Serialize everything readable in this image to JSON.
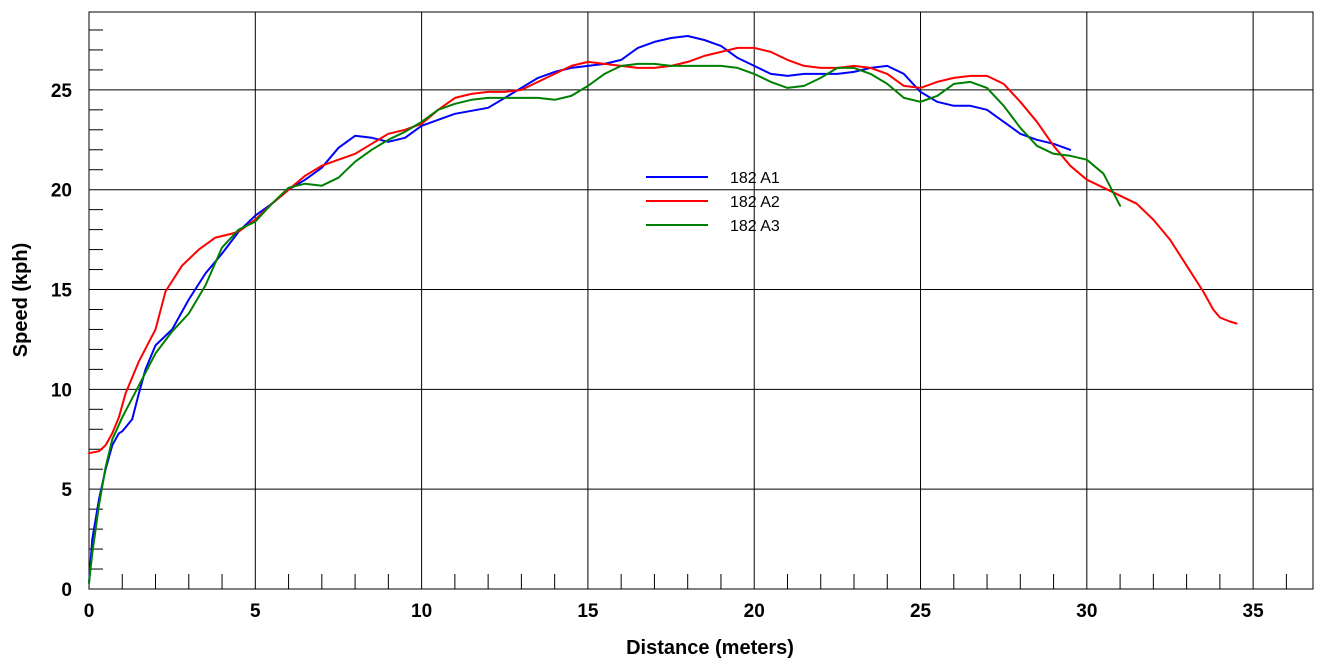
{
  "chart_data": {
    "type": "line",
    "title": "",
    "xlabel": "Distance (meters)",
    "ylabel": "Speed (kph)",
    "xlim": [
      0,
      36.8
    ],
    "ylim": [
      0,
      28.9
    ],
    "x_ticks": [
      "0",
      "5",
      "10",
      "15",
      "20",
      "25",
      "30",
      "35"
    ],
    "y_ticks": [
      "0",
      "5",
      "10",
      "15",
      "20",
      "25"
    ],
    "grid": true,
    "legend_position": "center",
    "series": [
      {
        "name": "182 A1",
        "color": "#0000ff",
        "points": [
          [
            0,
            0.3
          ],
          [
            0.1,
            2.5
          ],
          [
            0.3,
            4.5
          ],
          [
            0.5,
            6.0
          ],
          [
            0.7,
            7.2
          ],
          [
            0.9,
            7.8
          ],
          [
            1.0,
            7.9
          ],
          [
            1.3,
            8.5
          ],
          [
            1.5,
            9.8
          ],
          [
            1.7,
            11.0
          ],
          [
            2.0,
            12.2
          ],
          [
            2.5,
            13.0
          ],
          [
            3.0,
            14.5
          ],
          [
            3.5,
            15.8
          ],
          [
            4.0,
            16.8
          ],
          [
            4.5,
            17.9
          ],
          [
            5.0,
            18.7
          ],
          [
            5.5,
            19.3
          ],
          [
            6.0,
            20.0
          ],
          [
            6.5,
            20.5
          ],
          [
            7.0,
            21.1
          ],
          [
            7.5,
            22.1
          ],
          [
            8.0,
            22.7
          ],
          [
            8.5,
            22.6
          ],
          [
            9.0,
            22.4
          ],
          [
            9.5,
            22.6
          ],
          [
            10.0,
            23.2
          ],
          [
            10.5,
            23.5
          ],
          [
            11.0,
            23.8
          ],
          [
            12.0,
            24.1
          ],
          [
            12.5,
            24.6
          ],
          [
            13.0,
            25.1
          ],
          [
            13.5,
            25.6
          ],
          [
            14.0,
            25.9
          ],
          [
            14.5,
            26.1
          ],
          [
            15.0,
            26.2
          ],
          [
            15.5,
            26.3
          ],
          [
            16.0,
            26.5
          ],
          [
            16.5,
            27.1
          ],
          [
            17.0,
            27.4
          ],
          [
            17.5,
            27.6
          ],
          [
            18.0,
            27.7
          ],
          [
            18.5,
            27.5
          ],
          [
            19.0,
            27.2
          ],
          [
            19.5,
            26.6
          ],
          [
            20.0,
            26.2
          ],
          [
            20.5,
            25.8
          ],
          [
            21.0,
            25.7
          ],
          [
            21.5,
            25.8
          ],
          [
            22.0,
            25.8
          ],
          [
            22.5,
            25.8
          ],
          [
            23.0,
            25.9
          ],
          [
            23.5,
            26.1
          ],
          [
            24.0,
            26.2
          ],
          [
            24.5,
            25.8
          ],
          [
            25.0,
            24.9
          ],
          [
            25.5,
            24.4
          ],
          [
            26.0,
            24.2
          ],
          [
            26.5,
            24.2
          ],
          [
            27.0,
            24.0
          ],
          [
            27.5,
            23.4
          ],
          [
            28.0,
            22.8
          ],
          [
            28.5,
            22.5
          ],
          [
            29.0,
            22.3
          ],
          [
            29.5,
            22.0
          ]
        ]
      },
      {
        "name": "182 A2",
        "color": "#ff0000",
        "points": [
          [
            0,
            6.8
          ],
          [
            0.3,
            6.9
          ],
          [
            0.5,
            7.2
          ],
          [
            0.7,
            7.8
          ],
          [
            0.9,
            8.6
          ],
          [
            1.1,
            9.8
          ],
          [
            1.5,
            11.4
          ],
          [
            2.0,
            13.0
          ],
          [
            2.3,
            14.9
          ],
          [
            2.8,
            16.2
          ],
          [
            3.3,
            17.0
          ],
          [
            3.8,
            17.6
          ],
          [
            4.3,
            17.8
          ],
          [
            4.5,
            17.9
          ],
          [
            5.0,
            18.5
          ],
          [
            5.5,
            19.3
          ],
          [
            6.0,
            20.0
          ],
          [
            6.5,
            20.7
          ],
          [
            7.0,
            21.2
          ],
          [
            7.5,
            21.5
          ],
          [
            8.0,
            21.8
          ],
          [
            8.5,
            22.3
          ],
          [
            9.0,
            22.8
          ],
          [
            9.5,
            23.0
          ],
          [
            10.0,
            23.3
          ],
          [
            10.5,
            24.0
          ],
          [
            11.0,
            24.6
          ],
          [
            11.5,
            24.8
          ],
          [
            12.0,
            24.9
          ],
          [
            12.5,
            24.9
          ],
          [
            13.0,
            25.0
          ],
          [
            13.5,
            25.4
          ],
          [
            14.0,
            25.8
          ],
          [
            14.5,
            26.2
          ],
          [
            15.0,
            26.4
          ],
          [
            15.5,
            26.3
          ],
          [
            16.0,
            26.2
          ],
          [
            16.5,
            26.1
          ],
          [
            17.0,
            26.1
          ],
          [
            17.5,
            26.2
          ],
          [
            18.0,
            26.4
          ],
          [
            18.5,
            26.7
          ],
          [
            19.0,
            26.9
          ],
          [
            19.5,
            27.1
          ],
          [
            20.0,
            27.1
          ],
          [
            20.5,
            26.9
          ],
          [
            21.0,
            26.5
          ],
          [
            21.5,
            26.2
          ],
          [
            22.0,
            26.1
          ],
          [
            22.5,
            26.1
          ],
          [
            23.0,
            26.2
          ],
          [
            23.5,
            26.1
          ],
          [
            24.0,
            25.8
          ],
          [
            24.5,
            25.2
          ],
          [
            25.0,
            25.1
          ],
          [
            25.5,
            25.4
          ],
          [
            26.0,
            25.6
          ],
          [
            26.5,
            25.7
          ],
          [
            27.0,
            25.7
          ],
          [
            27.5,
            25.3
          ],
          [
            28.0,
            24.4
          ],
          [
            28.5,
            23.4
          ],
          [
            29.0,
            22.2
          ],
          [
            29.5,
            21.2
          ],
          [
            30.0,
            20.5
          ],
          [
            30.5,
            20.1
          ],
          [
            31.0,
            19.7
          ],
          [
            31.5,
            19.3
          ],
          [
            32.0,
            18.5
          ],
          [
            32.5,
            17.5
          ],
          [
            33.0,
            16.2
          ],
          [
            33.5,
            14.9
          ],
          [
            33.8,
            14.0
          ],
          [
            34.0,
            13.6
          ],
          [
            34.3,
            13.4
          ],
          [
            34.5,
            13.3
          ]
        ]
      },
      {
        "name": "182 A3",
        "color": "#008000",
        "points": [
          [
            0,
            0.3
          ],
          [
            0.1,
            1.8
          ],
          [
            0.3,
            4.2
          ],
          [
            0.5,
            6.1
          ],
          [
            0.7,
            7.5
          ],
          [
            1.0,
            8.6
          ],
          [
            1.5,
            10.2
          ],
          [
            2.0,
            11.8
          ],
          [
            2.5,
            12.9
          ],
          [
            3.0,
            13.8
          ],
          [
            3.5,
            15.2
          ],
          [
            4.0,
            17.1
          ],
          [
            4.5,
            18.0
          ],
          [
            5.0,
            18.4
          ],
          [
            5.5,
            19.3
          ],
          [
            6.0,
            20.1
          ],
          [
            6.5,
            20.3
          ],
          [
            7.0,
            20.2
          ],
          [
            7.5,
            20.6
          ],
          [
            8.0,
            21.4
          ],
          [
            8.5,
            22.0
          ],
          [
            9.0,
            22.5
          ],
          [
            9.5,
            22.9
          ],
          [
            10.0,
            23.4
          ],
          [
            10.5,
            24.0
          ],
          [
            11.0,
            24.3
          ],
          [
            11.5,
            24.5
          ],
          [
            12.0,
            24.6
          ],
          [
            12.5,
            24.6
          ],
          [
            13.0,
            24.6
          ],
          [
            13.5,
            24.6
          ],
          [
            14.0,
            24.5
          ],
          [
            14.5,
            24.7
          ],
          [
            15.0,
            25.2
          ],
          [
            15.5,
            25.8
          ],
          [
            16.0,
            26.2
          ],
          [
            16.5,
            26.3
          ],
          [
            17.0,
            26.3
          ],
          [
            17.5,
            26.2
          ],
          [
            18.0,
            26.2
          ],
          [
            18.5,
            26.2
          ],
          [
            19.0,
            26.2
          ],
          [
            19.5,
            26.1
          ],
          [
            20.0,
            25.8
          ],
          [
            20.5,
            25.4
          ],
          [
            21.0,
            25.1
          ],
          [
            21.5,
            25.2
          ],
          [
            22.0,
            25.6
          ],
          [
            22.5,
            26.1
          ],
          [
            23.0,
            26.1
          ],
          [
            23.5,
            25.8
          ],
          [
            24.0,
            25.3
          ],
          [
            24.5,
            24.6
          ],
          [
            25.0,
            24.4
          ],
          [
            25.5,
            24.7
          ],
          [
            26.0,
            25.3
          ],
          [
            26.5,
            25.4
          ],
          [
            27.0,
            25.1
          ],
          [
            27.5,
            24.2
          ],
          [
            28.0,
            23.1
          ],
          [
            28.5,
            22.2
          ],
          [
            29.0,
            21.8
          ],
          [
            29.5,
            21.7
          ],
          [
            30.0,
            21.5
          ],
          [
            30.5,
            20.8
          ],
          [
            31.0,
            19.2
          ]
        ]
      }
    ]
  }
}
